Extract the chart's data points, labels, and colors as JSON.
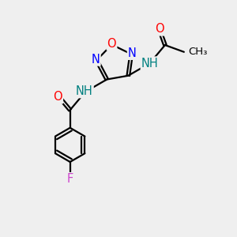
{
  "bg_color": "#efefef",
  "bond_color": "#000000",
  "atom_colors": {
    "O": "#ff0000",
    "N": "#0000ff",
    "F": "#cc44cc",
    "NH": "#008080",
    "C": "#000000"
  },
  "figsize": [
    3.0,
    3.0
  ],
  "dpi": 100
}
